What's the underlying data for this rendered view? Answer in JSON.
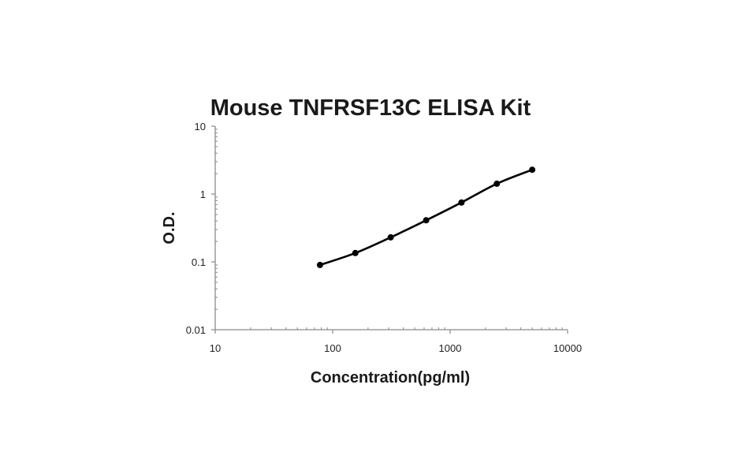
{
  "chart_data": {
    "type": "line",
    "title": "Mouse TNFRSF13C ELISA Kit",
    "xlabel": "Concentration(pg/ml)",
    "ylabel": "O.D.",
    "xscale": "log",
    "yscale": "log",
    "xlim": [
      10,
      10000
    ],
    "ylim": [
      0.01,
      10
    ],
    "x_tick_labels": [
      "10",
      "100",
      "1000",
      "10000"
    ],
    "y_tick_labels": [
      "10",
      "1",
      "0.1",
      "0.01"
    ],
    "grid": false,
    "legend": "none",
    "series": [
      {
        "x": [
          78,
          156,
          312,
          625,
          1250,
          2500,
          5000
        ],
        "y": [
          0.09,
          0.135,
          0.23,
          0.41,
          0.75,
          1.42,
          2.28
        ],
        "color": "#000000",
        "marker": "circle"
      }
    ]
  }
}
